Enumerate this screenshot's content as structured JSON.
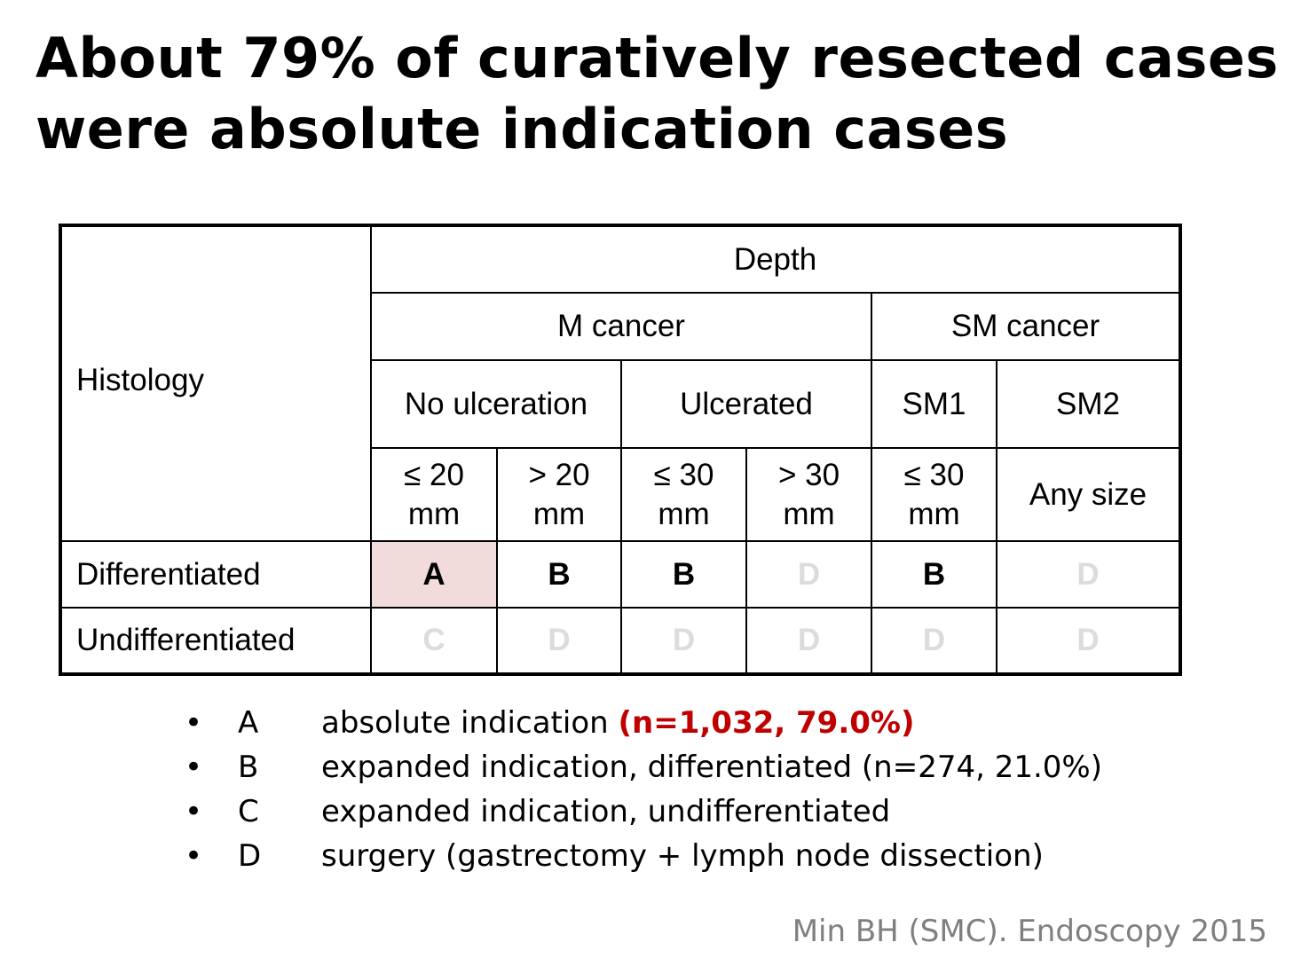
{
  "title": {
    "line1": "About 79% of curatively resected cases",
    "line2": "were absolute indication cases"
  },
  "table": {
    "histology_header": "Histology",
    "depth_header": "Depth",
    "m_cancer": "M cancer",
    "sm_cancer": "SM cancer",
    "no_ulceration": "No ulceration",
    "ulcerated": "Ulcerated",
    "sm1": "SM1",
    "sm2": "SM2",
    "sizes": [
      {
        "line1": "≤ 20",
        "line2": "mm"
      },
      {
        "line1": "> 20",
        "line2": "mm"
      },
      {
        "line1": "≤ 30",
        "line2": "mm"
      },
      {
        "line1": "> 30",
        "line2": "mm"
      },
      {
        "line1": "≤ 30",
        "line2": "mm"
      },
      {
        "line1": "Any size",
        "line2": ""
      }
    ],
    "rows": [
      {
        "label": "Differentiated",
        "cells": [
          "A",
          "B",
          "B",
          "D",
          "B",
          "D"
        ]
      },
      {
        "label": "Undifferentiated",
        "cells": [
          "C",
          "D",
          "D",
          "D",
          "D",
          "D"
        ]
      }
    ]
  },
  "legend": [
    {
      "bullet": "•",
      "key": "A",
      "desc": "absolute indication ",
      "highlight": "(n=1,032, 79.0%)"
    },
    {
      "bullet": "•",
      "key": "B",
      "desc": "expanded indication, differentiated (n=274, 21.0%)"
    },
    {
      "bullet": "•",
      "key": "C",
      "desc": "expanded indication, undifferentiated"
    },
    {
      "bullet": "•",
      "key": "D",
      "desc": "surgery (gastrectomy + lymph node dissection)"
    }
  ],
  "citation": "Min BH (SMC). Endoscopy 2015",
  "colors": {
    "highlight_cell": "#f2dcdb",
    "highlight_text": "#c00000",
    "faded_text": "#dcdcdc",
    "citation_text": "#7f7f7f"
  }
}
